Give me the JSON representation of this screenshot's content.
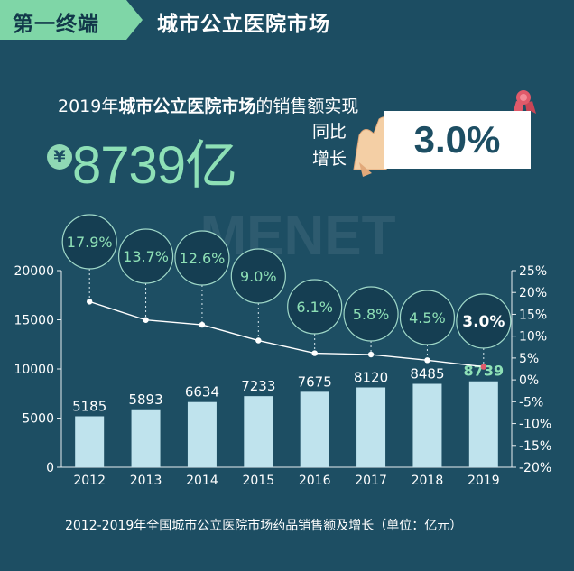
{
  "header": {
    "tag": "第一终端",
    "title": "城市公立医院市场"
  },
  "headline": {
    "prefix": "2019年",
    "bold": "城市公立医院市场",
    "suffix": "的销售额实现"
  },
  "total": {
    "symbol": "¥",
    "value": "8739亿"
  },
  "yoy": {
    "label1": "同比",
    "label2": "增长",
    "value": "3.0%"
  },
  "watermark": "MENET",
  "caption": "2012-2019年全国城市公立医院市场药品销售额及增长（单位：亿元）",
  "colors": {
    "background": "#1d4e63",
    "bars": "#bfe3ed",
    "accent": "#8ee0b6",
    "line": "#ffffff",
    "highlight": "#e05a6a"
  },
  "chart_data": {
    "type": "bar",
    "categories": [
      "2012",
      "2013",
      "2014",
      "2015",
      "2016",
      "2017",
      "2018",
      "2019"
    ],
    "series": [
      {
        "type": "bar",
        "axis": "left",
        "values": [
          5185,
          5893,
          6634,
          7233,
          7675,
          8120,
          8485,
          8739
        ],
        "labels": [
          "5185",
          "5893",
          "6634",
          "7233",
          "7675",
          "8120",
          "8485",
          "8739"
        ]
      },
      {
        "type": "line",
        "axis": "right",
        "values": [
          17.9,
          13.7,
          12.6,
          9.0,
          6.1,
          5.8,
          4.5,
          3.0
        ],
        "labels": [
          "17.9%",
          "13.7%",
          "12.6%",
          "9.0%",
          "6.1%",
          "5.8%",
          "4.5%",
          "3.0%"
        ]
      }
    ],
    "ylim": [
      0,
      20000
    ],
    "yticks": [
      "0",
      "5000",
      "10000",
      "15000",
      "20000"
    ],
    "y2lim": [
      -20,
      25
    ],
    "y2ticks": [
      "-20%",
      "-15%",
      "-10%",
      "-5%",
      "0%",
      "5%",
      "10%",
      "15%",
      "20%",
      "25%"
    ]
  }
}
